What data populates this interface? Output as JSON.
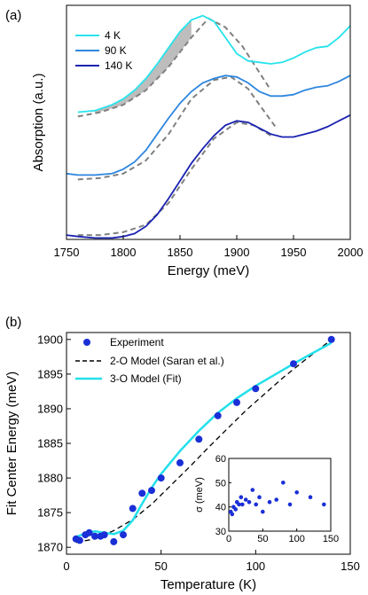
{
  "panel_a": {
    "label": "(a)",
    "xlabel": "Energy (meV)",
    "ylabel": "Absorption (a.u.)",
    "xticks": [
      "1750",
      "1800",
      "1850",
      "1900",
      "1950",
      "2000"
    ],
    "legend": [
      "4 K",
      "90 K",
      "140 K"
    ]
  },
  "panel_b": {
    "label": "(b)",
    "xlabel": "Temperature (K)",
    "ylabel": "Fit Center Energy (meV)",
    "xticks": [
      "0",
      "50",
      "100",
      "150"
    ],
    "yticks": [
      "1870",
      "1875",
      "1880",
      "1885",
      "1890",
      "1895",
      "1900"
    ],
    "legend": [
      "Experiment",
      "2-O Model (Saran et al.)",
      "3-O Model (Fit)"
    ],
    "inset": {
      "ylabel": "σ (meV)",
      "xticks": [
        "0",
        "50",
        "100",
        "150"
      ],
      "yticks": [
        "30",
        "40",
        "50",
        "60"
      ]
    }
  },
  "colors": {
    "t4K": "#27e3ec",
    "t90K": "#2e86de",
    "t140K": "#1a22b0",
    "experiment": "#1a2fd6",
    "fit": "#22e0ea",
    "model": "#000000",
    "dash": "#808080",
    "shade": "#bdbdbd"
  },
  "chart_data": [
    {
      "type": "line",
      "xlabel": "Energy (meV)",
      "ylabel": "Absorption (a.u.)",
      "xlim": [
        1750,
        2000
      ],
      "series": [
        {
          "name": "4 K",
          "x": [
            1760,
            1775,
            1790,
            1800,
            1810,
            1820,
            1830,
            1840,
            1850,
            1860,
            1870,
            1880,
            1890,
            1900,
            1910,
            1920,
            1930,
            1940,
            1950,
            1960,
            1970,
            1980,
            1990,
            2000
          ],
          "y": [
            0.87,
            0.88,
            0.92,
            0.96,
            1.02,
            1.1,
            1.2,
            1.31,
            1.42,
            1.5,
            1.53,
            1.49,
            1.38,
            1.27,
            1.22,
            1.21,
            1.2,
            1.21,
            1.24,
            1.28,
            1.31,
            1.32,
            1.38,
            1.46
          ]
        },
        {
          "name": "90 K",
          "x": [
            1750,
            1760,
            1775,
            1790,
            1800,
            1810,
            1820,
            1830,
            1840,
            1850,
            1860,
            1870,
            1880,
            1890,
            1900,
            1910,
            1920,
            1930,
            1940,
            1950,
            1960,
            1970,
            1980,
            1990,
            2000
          ],
          "y": [
            0.45,
            0.44,
            0.44,
            0.45,
            0.48,
            0.53,
            0.61,
            0.72,
            0.83,
            0.93,
            1.01,
            1.07,
            1.1,
            1.12,
            1.11,
            1.07,
            1.01,
            0.98,
            0.98,
            0.99,
            1.02,
            1.04,
            1.05,
            1.08,
            1.12
          ]
        },
        {
          "name": "140 K",
          "x": [
            1750,
            1760,
            1775,
            1790,
            1800,
            1810,
            1820,
            1830,
            1840,
            1850,
            1860,
            1870,
            1880,
            1890,
            1900,
            1910,
            1920,
            1930,
            1940,
            1950,
            1960,
            1970,
            1980,
            1990,
            2000
          ],
          "y": [
            0.03,
            0.02,
            0.01,
            0.01,
            0.02,
            0.04,
            0.09,
            0.17,
            0.28,
            0.4,
            0.52,
            0.62,
            0.71,
            0.78,
            0.81,
            0.8,
            0.76,
            0.72,
            0.7,
            0.7,
            0.72,
            0.74,
            0.77,
            0.81,
            0.85
          ]
        }
      ],
      "fits": [
        {
          "x": [
            1760,
            1780,
            1800,
            1820,
            1840,
            1860,
            1875,
            1890,
            1905,
            1920,
            1930
          ],
          "y": [
            0.84,
            0.87,
            0.92,
            1.02,
            1.18,
            1.38,
            1.51,
            1.45,
            1.32,
            1.14,
            1.02
          ]
        },
        {
          "x": [
            1760,
            1780,
            1800,
            1820,
            1840,
            1860,
            1880,
            1895,
            1910,
            1920,
            1935
          ],
          "y": [
            0.41,
            0.42,
            0.45,
            0.54,
            0.72,
            0.96,
            1.09,
            1.11,
            1.03,
            0.92,
            0.76
          ]
        },
        {
          "x": [
            1760,
            1780,
            1800,
            1820,
            1840,
            1860,
            1880,
            1900,
            1915,
            1930
          ],
          "y": [
            0.03,
            0.03,
            0.05,
            0.1,
            0.25,
            0.48,
            0.69,
            0.8,
            0.78,
            0.71
          ]
        }
      ]
    },
    {
      "type": "scatter",
      "xlabel": "Temperature (K)",
      "ylabel": "Fit Center Energy (meV)",
      "xlim": [
        0,
        150
      ],
      "ylim": [
        1869,
        1901
      ],
      "series": [
        {
          "name": "Experiment",
          "x": [
            5,
            7,
            10,
            12,
            15,
            18,
            20,
            25,
            30,
            35,
            40,
            45,
            50,
            60,
            70,
            80,
            90,
            100,
            120,
            140
          ],
          "y": [
            1871.2,
            1871.0,
            1871.8,
            1872.1,
            1871.6,
            1871.6,
            1871.8,
            1870.8,
            1871.8,
            1875.6,
            1877.8,
            1878.2,
            1880.0,
            1882.2,
            1885.6,
            1889.0,
            1890.9,
            1892.9,
            1896.5,
            1900.0
          ]
        },
        {
          "name": "2-O Model (Saran et al.)",
          "x": [
            5,
            15,
            25,
            35,
            45,
            55,
            65,
            75,
            85,
            95,
            105,
            115,
            125,
            135,
            140
          ],
          "y": [
            1870.7,
            1871.2,
            1872.4,
            1874.0,
            1876.2,
            1878.9,
            1881.6,
            1884.4,
            1887.1,
            1889.8,
            1892.2,
            1894.6,
            1896.8,
            1898.9,
            1900.0
          ]
        },
        {
          "name": "3-O Model (Fit)",
          "x": [
            5,
            10,
            15,
            20,
            25,
            30,
            35,
            40,
            45,
            50,
            60,
            70,
            80,
            90,
            100,
            110,
            120,
            130,
            140
          ],
          "y": [
            1871.5,
            1872.0,
            1872.3,
            1872.1,
            1871.9,
            1872.4,
            1873.9,
            1876.3,
            1878.6,
            1880.6,
            1883.9,
            1886.8,
            1889.4,
            1891.5,
            1893.3,
            1894.9,
            1896.5,
            1898.0,
            1899.5
          ]
        }
      ],
      "inset": {
        "type": "scatter",
        "ylabel": "σ (meV)",
        "xlim": [
          0,
          150
        ],
        "ylim": [
          30,
          60
        ],
        "x": [
          3,
          5,
          7,
          10,
          12,
          15,
          18,
          20,
          25,
          30,
          35,
          40,
          45,
          50,
          60,
          70,
          80,
          90,
          100,
          120,
          140
        ],
        "y": [
          38,
          37,
          40,
          39,
          42,
          41,
          44,
          41,
          43,
          42,
          47,
          41,
          44,
          38,
          42,
          43,
          50,
          41,
          46,
          44,
          41
        ]
      }
    }
  ]
}
